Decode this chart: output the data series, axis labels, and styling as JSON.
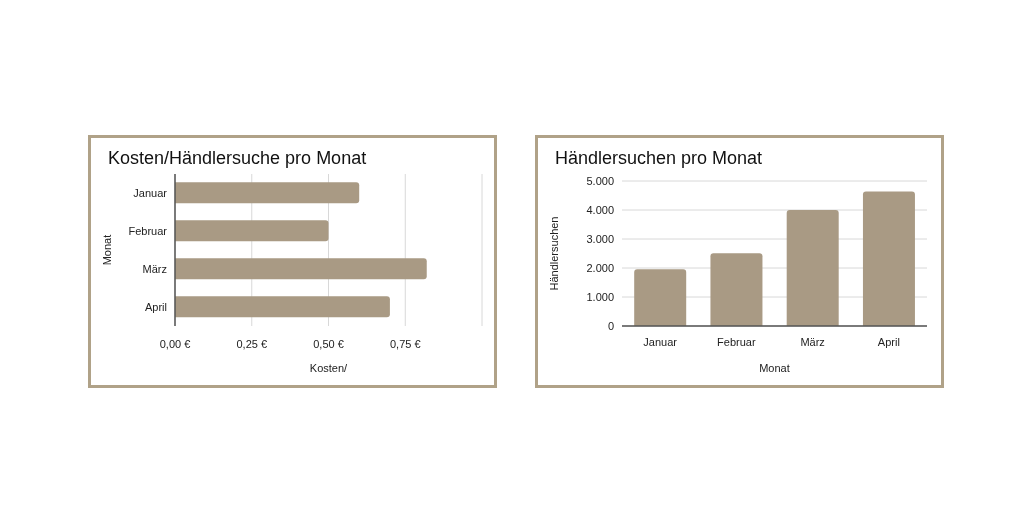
{
  "chart_data": [
    {
      "type": "bar",
      "title": "Kosten/Händlersuche pro Monat",
      "orientation": "horizontal",
      "categories": [
        "Januar",
        "Februar",
        "März",
        "April"
      ],
      "values": [
        0.6,
        0.5,
        0.82,
        0.7
      ],
      "color": "#a99a84",
      "xlim": [
        0,
        1
      ],
      "xticks": [
        {
          "value": 0,
          "label": "0,00 €"
        },
        {
          "value": 0.25,
          "label": "0,25 €"
        },
        {
          "value": 0.5,
          "label": "0,50 €"
        },
        {
          "value": 0.75,
          "label": "0,75 €"
        },
        {
          "value": 1,
          "label": null
        }
      ],
      "xlabel": "Kosten/",
      "ylabel": "Monat",
      "grid": "x",
      "legend": false
    },
    {
      "type": "bar",
      "title": "Händlersuchen pro Monat",
      "categories": [
        "Januar",
        "Februar",
        "März",
        "April"
      ],
      "values": [
        1960,
        2510,
        4000,
        4640
      ],
      "color": "#a99a84",
      "ylim": [
        0,
        5000
      ],
      "yticks": [
        {
          "value": 0,
          "label": "0"
        },
        {
          "value": 1000,
          "label": "1.000"
        },
        {
          "value": 2000,
          "label": "2.000"
        },
        {
          "value": 3000,
          "label": "3.000"
        },
        {
          "value": 4000,
          "label": "4.000"
        },
        {
          "value": 5000,
          "label": "5.000"
        }
      ],
      "xlabel": "Monat",
      "ylabel": "Händlersuchen",
      "grid": "y",
      "legend": false
    }
  ]
}
